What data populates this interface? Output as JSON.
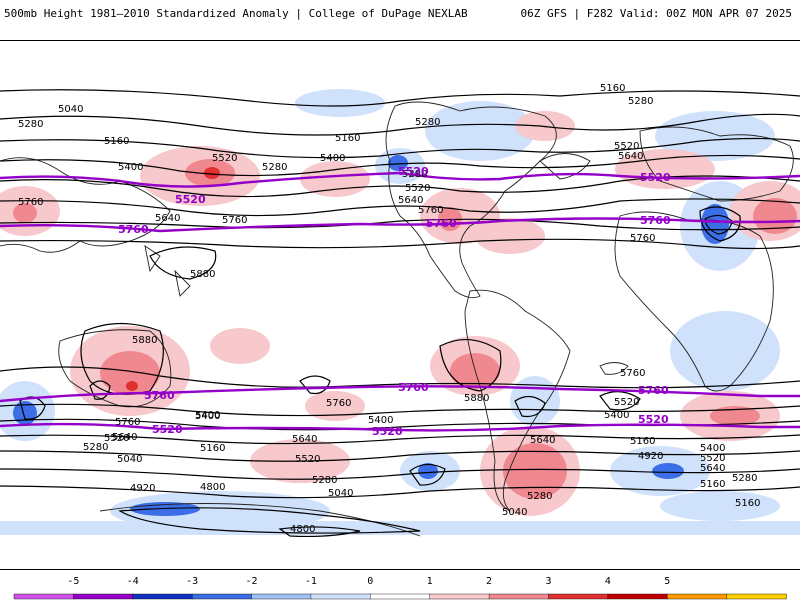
{
  "header": {
    "left_title": "500mb Height 1981–2010 Standardized Anomaly | College of DuPage NEXLAB",
    "right_title": "06Z GFS | F282 Valid: 00Z MON APR 07 2025"
  },
  "colorbar": {
    "ticks": [
      "-5",
      "-4",
      "-3",
      "-2",
      "-1",
      "0",
      "1",
      "2",
      "3",
      "4",
      "5"
    ],
    "colors": [
      "#d050e8",
      "#9400c8",
      "#1030c0",
      "#3c6ee8",
      "#9ec2f5",
      "#cfe1fb",
      "#ffffff",
      "#f7c8cc",
      "#f08890",
      "#e03030",
      "#c00000",
      "#ff9a00",
      "#ffd000"
    ]
  },
  "colors": {
    "contour": "#000000",
    "highlight_contour": "#9400c8",
    "coastline": "#222222"
  },
  "contour_labels": {
    "black": [
      "5160",
      "5280",
      "5040",
      "5280",
      "5160",
      "5400",
      "5520",
      "5280",
      "5640",
      "5760",
      "5760",
      "5160",
      "5400",
      "5520",
      "5640",
      "5280",
      "5520",
      "5640",
      "5760",
      "5880",
      "5880",
      "5760",
      "5640",
      "5520",
      "5400",
      "5280",
      "5160",
      "5040",
      "4920",
      "4800",
      "4800",
      "5400",
      "5640",
      "5520",
      "5280",
      "5040",
      "5760",
      "5400",
      "5880",
      "5640",
      "5280",
      "5040",
      "5760",
      "5520",
      "5400",
      "5160",
      "4920",
      "5160",
      "5280",
      "5400",
      "5520",
      "5640",
      "5760",
      "5280",
      "5160"
    ],
    "purple": [
      "5520",
      "5520",
      "5760",
      "5760",
      "5520",
      "5760",
      "5760",
      "5760",
      "5520",
      "5520",
      "5760",
      "5520"
    ]
  }
}
